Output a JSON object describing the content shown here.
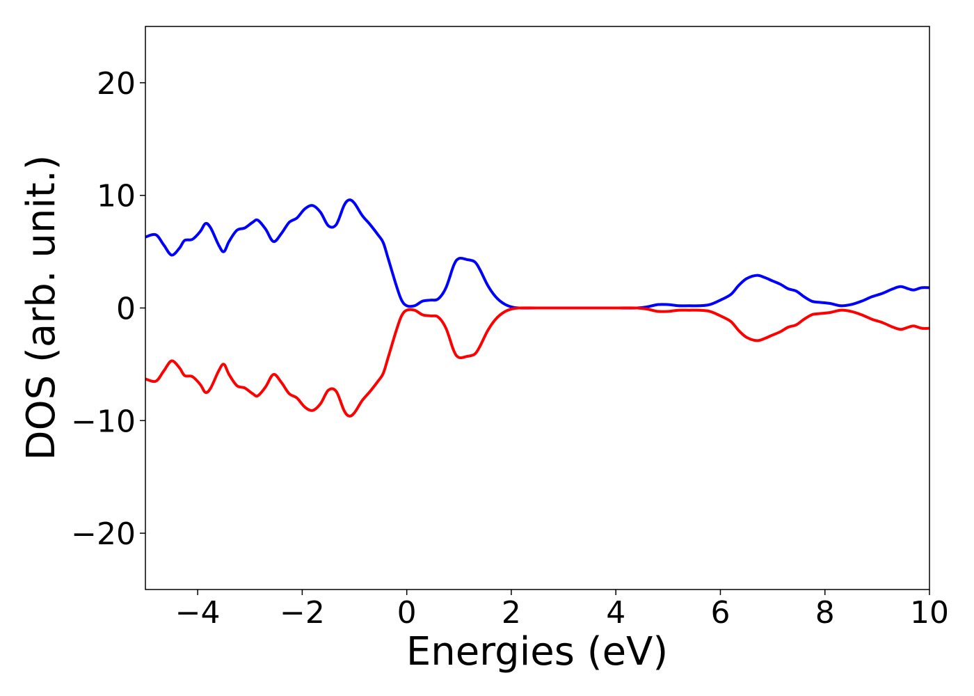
{
  "chart_data": {
    "type": "line",
    "title": "",
    "xlabel": "Energies (eV)",
    "ylabel": "DOS (arb. unit.)",
    "xlim": [
      -5,
      10
    ],
    "ylim": [
      -25,
      25
    ],
    "xticks": [
      -4,
      -2,
      0,
      2,
      4,
      6,
      8,
      10
    ],
    "xtick_labels": [
      "−4",
      "−2",
      "0",
      "2",
      "4",
      "6",
      "8",
      "10"
    ],
    "yticks": [
      -20,
      -10,
      0,
      10,
      20
    ],
    "ytick_labels": [
      "−20",
      "−10",
      "0",
      "10",
      "20"
    ],
    "grid": false,
    "series": [
      {
        "color": "#0000ff",
        "points": [
          [
            -5.0,
            6.3
          ],
          [
            -4.8,
            6.5
          ],
          [
            -4.65,
            5.6
          ],
          [
            -4.5,
            4.7
          ],
          [
            -4.35,
            5.3
          ],
          [
            -4.25,
            6.0
          ],
          [
            -4.1,
            6.1
          ],
          [
            -3.95,
            6.8
          ],
          [
            -3.85,
            7.5
          ],
          [
            -3.75,
            7.1
          ],
          [
            -3.6,
            5.6
          ],
          [
            -3.5,
            5.0
          ],
          [
            -3.4,
            5.9
          ],
          [
            -3.25,
            6.9
          ],
          [
            -3.1,
            7.1
          ],
          [
            -2.95,
            7.6
          ],
          [
            -2.85,
            7.8
          ],
          [
            -2.7,
            7.0
          ],
          [
            -2.55,
            5.9
          ],
          [
            -2.4,
            6.6
          ],
          [
            -2.25,
            7.6
          ],
          [
            -2.1,
            8.0
          ],
          [
            -1.95,
            8.8
          ],
          [
            -1.8,
            9.1
          ],
          [
            -1.65,
            8.5
          ],
          [
            -1.5,
            7.3
          ],
          [
            -1.35,
            7.4
          ],
          [
            -1.2,
            9.1
          ],
          [
            -1.1,
            9.6
          ],
          [
            -1.0,
            9.3
          ],
          [
            -0.85,
            8.2
          ],
          [
            -0.7,
            7.4
          ],
          [
            -0.55,
            6.5
          ],
          [
            -0.45,
            5.8
          ],
          [
            -0.35,
            4.3
          ],
          [
            -0.2,
            2.0
          ],
          [
            -0.1,
            0.7
          ],
          [
            0.0,
            0.2
          ],
          [
            0.15,
            0.2
          ],
          [
            0.3,
            0.6
          ],
          [
            0.45,
            0.7
          ],
          [
            0.6,
            0.8
          ],
          [
            0.75,
            1.8
          ],
          [
            0.9,
            3.8
          ],
          [
            1.0,
            4.4
          ],
          [
            1.15,
            4.3
          ],
          [
            1.3,
            4.1
          ],
          [
            1.4,
            3.4
          ],
          [
            1.55,
            2.0
          ],
          [
            1.7,
            1.0
          ],
          [
            1.85,
            0.4
          ],
          [
            2.0,
            0.1
          ],
          [
            2.15,
            0.0
          ],
          [
            2.5,
            0.0
          ],
          [
            3.0,
            0.0
          ],
          [
            3.5,
            0.0
          ],
          [
            4.0,
            0.0
          ],
          [
            4.4,
            0.0
          ],
          [
            4.6,
            0.1
          ],
          [
            4.8,
            0.3
          ],
          [
            5.0,
            0.3
          ],
          [
            5.2,
            0.2
          ],
          [
            5.4,
            0.2
          ],
          [
            5.6,
            0.2
          ],
          [
            5.8,
            0.3
          ],
          [
            6.0,
            0.7
          ],
          [
            6.2,
            1.2
          ],
          [
            6.35,
            2.0
          ],
          [
            6.5,
            2.6
          ],
          [
            6.7,
            2.9
          ],
          [
            6.85,
            2.7
          ],
          [
            7.0,
            2.4
          ],
          [
            7.15,
            2.1
          ],
          [
            7.3,
            1.7
          ],
          [
            7.45,
            1.5
          ],
          [
            7.6,
            1.0
          ],
          [
            7.75,
            0.6
          ],
          [
            7.9,
            0.5
          ],
          [
            8.1,
            0.4
          ],
          [
            8.3,
            0.2
          ],
          [
            8.5,
            0.3
          ],
          [
            8.7,
            0.6
          ],
          [
            8.9,
            1.0
          ],
          [
            9.1,
            1.3
          ],
          [
            9.3,
            1.7
          ],
          [
            9.45,
            1.9
          ],
          [
            9.6,
            1.7
          ],
          [
            9.7,
            1.6
          ],
          [
            9.85,
            1.8
          ],
          [
            10.0,
            1.8
          ]
        ]
      },
      {
        "color": "#ff0000",
        "points": [
          [
            -5.0,
            -6.3
          ],
          [
            -4.8,
            -6.5
          ],
          [
            -4.65,
            -5.6
          ],
          [
            -4.5,
            -4.7
          ],
          [
            -4.35,
            -5.3
          ],
          [
            -4.25,
            -6.0
          ],
          [
            -4.1,
            -6.1
          ],
          [
            -3.95,
            -6.8
          ],
          [
            -3.85,
            -7.5
          ],
          [
            -3.75,
            -7.1
          ],
          [
            -3.6,
            -5.6
          ],
          [
            -3.5,
            -5.0
          ],
          [
            -3.4,
            -5.9
          ],
          [
            -3.25,
            -6.9
          ],
          [
            -3.1,
            -7.1
          ],
          [
            -2.95,
            -7.6
          ],
          [
            -2.85,
            -7.8
          ],
          [
            -2.7,
            -7.0
          ],
          [
            -2.55,
            -5.9
          ],
          [
            -2.4,
            -6.6
          ],
          [
            -2.25,
            -7.6
          ],
          [
            -2.1,
            -8.0
          ],
          [
            -1.95,
            -8.8
          ],
          [
            -1.8,
            -9.1
          ],
          [
            -1.65,
            -8.5
          ],
          [
            -1.5,
            -7.3
          ],
          [
            -1.35,
            -7.4
          ],
          [
            -1.2,
            -9.1
          ],
          [
            -1.1,
            -9.6
          ],
          [
            -1.0,
            -9.3
          ],
          [
            -0.85,
            -8.2
          ],
          [
            -0.7,
            -7.4
          ],
          [
            -0.55,
            -6.5
          ],
          [
            -0.45,
            -5.8
          ],
          [
            -0.35,
            -4.3
          ],
          [
            -0.2,
            -2.0
          ],
          [
            -0.1,
            -0.7
          ],
          [
            0.0,
            -0.2
          ],
          [
            0.15,
            -0.2
          ],
          [
            0.3,
            -0.6
          ],
          [
            0.45,
            -0.7
          ],
          [
            0.6,
            -0.8
          ],
          [
            0.75,
            -1.8
          ],
          [
            0.9,
            -3.8
          ],
          [
            1.0,
            -4.4
          ],
          [
            1.15,
            -4.3
          ],
          [
            1.3,
            -4.1
          ],
          [
            1.4,
            -3.4
          ],
          [
            1.55,
            -2.0
          ],
          [
            1.7,
            -1.0
          ],
          [
            1.85,
            -0.4
          ],
          [
            2.0,
            -0.1
          ],
          [
            2.15,
            0.0
          ],
          [
            2.5,
            0.0
          ],
          [
            3.0,
            0.0
          ],
          [
            3.5,
            0.0
          ],
          [
            4.0,
            0.0
          ],
          [
            4.4,
            0.0
          ],
          [
            4.6,
            -0.1
          ],
          [
            4.8,
            -0.3
          ],
          [
            5.0,
            -0.3
          ],
          [
            5.2,
            -0.2
          ],
          [
            5.4,
            -0.2
          ],
          [
            5.6,
            -0.2
          ],
          [
            5.8,
            -0.3
          ],
          [
            6.0,
            -0.7
          ],
          [
            6.2,
            -1.2
          ],
          [
            6.35,
            -2.0
          ],
          [
            6.5,
            -2.6
          ],
          [
            6.7,
            -2.9
          ],
          [
            6.85,
            -2.7
          ],
          [
            7.0,
            -2.4
          ],
          [
            7.15,
            -2.1
          ],
          [
            7.3,
            -1.7
          ],
          [
            7.45,
            -1.5
          ],
          [
            7.6,
            -1.0
          ],
          [
            7.75,
            -0.6
          ],
          [
            7.9,
            -0.5
          ],
          [
            8.1,
            -0.4
          ],
          [
            8.3,
            -0.2
          ],
          [
            8.5,
            -0.3
          ],
          [
            8.7,
            -0.6
          ],
          [
            8.9,
            -1.0
          ],
          [
            9.1,
            -1.3
          ],
          [
            9.3,
            -1.7
          ],
          [
            9.45,
            -1.9
          ],
          [
            9.6,
            -1.7
          ],
          [
            9.7,
            -1.6
          ],
          [
            9.85,
            -1.8
          ],
          [
            10.0,
            -1.8
          ]
        ]
      }
    ]
  }
}
